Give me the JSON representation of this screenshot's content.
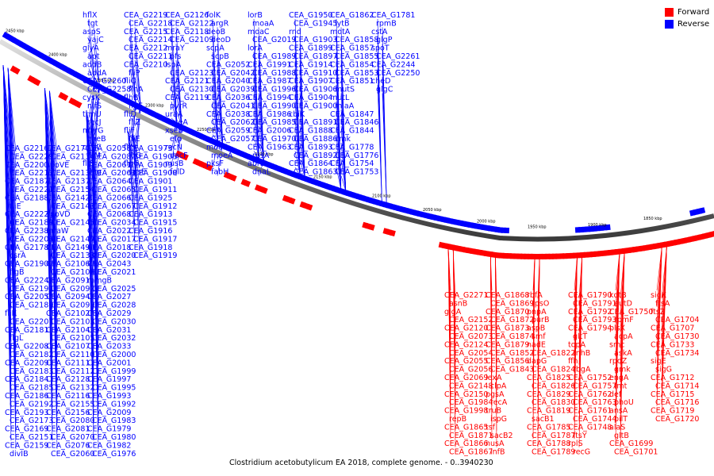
{
  "caption": "Clostridium acetobutylicum EA 2018, complete genome. - 0..3940230",
  "legend": [
    {
      "label": "Forward",
      "color": "#ff0000"
    },
    {
      "label": "Reverse",
      "color": "#0000ff"
    }
  ],
  "colors": {
    "forward": "#ff0000",
    "reverse": "#0000ff",
    "backbone": "#7f7f7f"
  },
  "scale_ticks": [
    "2450 kbp",
    "2400 kbp",
    "2350 kbp",
    "2300 kbp",
    "2250 kbp",
    "2200 kbp",
    "2150 kbp",
    "2100 kbp",
    "2050 kbp",
    "2000 kbp",
    "1950 kbp",
    "1900 kbp",
    "1850 kbp"
  ],
  "labels_reverse": [
    "hflX",
    "tgt",
    "aspS",
    "yajC",
    "glyA",
    "apt",
    "addB",
    "addA",
    "CEA_G2260",
    "CEA_G2258",
    "cysK",
    "nifS",
    "trmU",
    "recJ",
    "murG",
    "cheB",
    "cheC",
    "fliM",
    "fliS",
    "flag",
    "CEA_G2219",
    "CEA_G2218",
    "CEA_G2215",
    "CEA_G2214",
    "CEA_G2212",
    "CEA_G2211",
    "CEA_G2210",
    "fliP",
    "fliQ",
    "flhA",
    "flhB",
    "flgE",
    "fliD",
    "fliZ",
    "fliF",
    "fliE",
    "fliH",
    "fliG",
    "flgG",
    "spsE",
    "CEA_G2126",
    "CEA_G2122",
    "CEA_G2118",
    "CEA_G2109",
    "mraY",
    "pfs",
    "lspA",
    "CEA_G2123",
    "CEA_G2121",
    "CEA_G2130",
    "CEA_G2119",
    "pyrR",
    "uraA",
    "xseA",
    "xseB",
    "efp",
    "recN",
    "dacF",
    "nusB",
    "folD",
    "folK",
    "argR",
    "deoB",
    "deoD",
    "scpA",
    "scpB",
    "CEA_G2052",
    "CEA_G2042",
    "CEA_G2040",
    "CEA_G2039",
    "CEA_G2036",
    "CEA_G2041",
    "CEA_G2038",
    "CEA_G2062",
    "CEA_G2059",
    "CEA_G2057",
    "moaB",
    "moeA",
    "pksF",
    "fabH",
    "lorB",
    "moaA",
    "moaC",
    "CEA_G2019",
    "lorA",
    "CEA_G1989",
    "CEA_G1991",
    "CEA_G1988",
    "CEA_G1987",
    "CEA_G1996",
    "CEA_G1994",
    "CEA_G1990",
    "CEA_G1986",
    "CEA_G1985",
    "CEA_G2006",
    "CEA_G1970",
    "CEA_G1963",
    "rpsA",
    "abrB",
    "dnaL",
    "CEA_G1950",
    "CEA_G1945",
    "rnd",
    "CEA_G1903",
    "CEA_G1899",
    "CEA_G1897",
    "CEA_G1914",
    "CEA_G1910",
    "CEA_G1907",
    "CEA_G1906",
    "CEA_G1904",
    "CEA_G1900",
    "cbiK",
    "CEA_G1891",
    "CEA_G1888",
    "CEA_G1886",
    "CEA_G1893",
    "CEA_G1892",
    "CEA_G1864",
    "CEA_G1863",
    "CEA_G1862",
    "lytB",
    "motA",
    "CEA_G1858",
    "CEA_G1857",
    "CEA_G1855",
    "CEA_G1854",
    "CEA_G1853",
    "CEA_G1851",
    "mutS",
    "mutL",
    "miaA",
    "CEA_G1847",
    "CEA_G1846",
    "CEA_G1844",
    "cmk",
    "CEA_G1778",
    "CEA_G1776",
    "CEA_G1754",
    "CEA_G1753",
    "CEA_G1781",
    "rpmB",
    "cstA",
    "glgP",
    "spoT",
    "CEA_G2261",
    "CEA_G2244",
    "CEA_G2250",
    "cheD",
    "glgC",
    "CEA_G2216",
    "CEA_G2229",
    "CEA_G2200",
    "CEA_G2213",
    "CEA_G2187",
    "CEA_G2221",
    "CEA_G2188",
    "fliE",
    "CEA_G2222",
    "CEA_G2189",
    "CEA_G2238",
    "CEA_G2206",
    "CEA_G2178",
    "csrA",
    "CEA_G2190",
    "flgB",
    "CEA_G2224",
    "CEA_G2191",
    "CEA_G2205",
    "CEA_G2180",
    "fliK",
    "CEA_G2207",
    "CEA_G2181",
    "flgL",
    "CEA_G2208",
    "CEA_G2182",
    "CEA_G2209",
    "CEA_G2183",
    "CEA_G2184",
    "CEA_G2185",
    "CEA_G2186",
    "CEA_G2192",
    "CEA_G2193",
    "CEA_G2173",
    "CEA_G2169",
    "CEA_G2151",
    "CEA_G2159",
    "divIB",
    "CEA_G2170",
    "CEA_G2134",
    "spoVE",
    "CEA_G2135",
    "CEA_G2137",
    "CEA_G2154",
    "CEA_G2142",
    "CEA_G2143",
    "spoVD",
    "CEA_G2145",
    "mraW",
    "CEA_G2147",
    "CEA_G2149",
    "CEA_G2133",
    "CEA_G2106",
    "CEA_G2100",
    "CEA_G2091",
    "CEA_G2092",
    "CEA_G2094",
    "CEA_G2099",
    "CEA_G2102",
    "CEA_G2103",
    "CEA_G2104",
    "CEA_G2105",
    "CEA_G2107",
    "CEA_G2110",
    "CEA_G2111",
    "CEA_G2112",
    "CEA_G2128",
    "CEA_G2132",
    "CEA_G2116",
    "CEA_G2155",
    "CEA_G2156",
    "CEA_G2080",
    "CEA_G2081",
    "CEA_G2070",
    "CEA_G2076",
    "CEA_G2060",
    "CEA_G2058",
    "CEA_G2082",
    "CEA_G2061",
    "CEA_G2063",
    "CEA_G2064",
    "CEA_G2065",
    "CEA_G2066",
    "CEA_G2067",
    "CEA_G2068",
    "CEA_G2034",
    "CEA_G2022",
    "CEA_G2017",
    "CEA_G2018",
    "CEA_G2020",
    "CEA_G2043",
    "CEA_G2021",
    "mmgB",
    "CEA_G2025",
    "CEA_G2027",
    "CEA_G2028",
    "CEA_G2029",
    "CEA_G2030",
    "CEA_G2031",
    "CEA_G2032",
    "CEA_G2033",
    "CEA_G2000",
    "CEA_G2001",
    "CEA_G1999",
    "CEA_G1997",
    "CEA_G1995",
    "CEA_G1993",
    "CEA_G1992",
    "CEA_G2009",
    "CEA_G1983",
    "CEA_G1979",
    "CEA_G1980",
    "CEA_G1982",
    "CEA_G1976",
    "CEA_G1973",
    "CEA_G1905",
    "CEA_G1909",
    "CEA_G1908",
    "CEA_G1901",
    "CEA_G1911",
    "CEA_G1925",
    "CEA_G1912",
    "CEA_G1913",
    "CEA_G1915",
    "CEA_G1916",
    "CEA_G1917",
    "CEA_G1918",
    "CEA_G1919"
  ],
  "labels_forward": [
    "CEA_G2271",
    "asnB",
    "glgA",
    "CEA_G2152",
    "CEA_G2120",
    "CEA_G2073",
    "CEA_G2124",
    "CEA_G2054",
    "CEA_G2055",
    "CEA_G2056",
    "CEA_G2069",
    "CEA_G2148",
    "CEA_G2150",
    "CEA_G1984",
    "CEA_G1998",
    "repB",
    "CEA_G1865",
    "CEA_G1871",
    "CEA_G1866",
    "CEA_G1867",
    "CEA_G1868",
    "CEA_G1869",
    "CEA_G1870",
    "CEA_G1872",
    "CEA_G1873",
    "CEA_G1874",
    "CEA_G1879",
    "CEA_G1852",
    "CEA_G1856",
    "CEA_G1843",
    "lexA",
    "clpA",
    "pgsA",
    "recA",
    "truB",
    "ispG",
    "tsf",
    "sacB2",
    "nusA",
    "infB",
    "rbfA",
    "rpsO",
    "pnpA",
    "purB",
    "aspB",
    "smf",
    "nadE",
    "CEA_G1822",
    "dapG",
    "CEA_G1824",
    "CEA_G1825",
    "CEA_G1826",
    "CEA_G1829",
    "CEA_G1830",
    "CEA_G1819",
    "sacB1",
    "CEA_G1785",
    "CEA_G1787",
    "CEA_G1788",
    "CEA_G1789",
    "CEA_G1790",
    "CEA_G1791",
    "CEA_G1792",
    "CEA_G1793",
    "CEA_G1794",
    "gltT",
    "topA",
    "rnhB",
    "ffh",
    "rbgA",
    "CEA_G1752",
    "CEA_G1757",
    "CEA_G1762",
    "CEA_G1763",
    "CEA_G1761",
    "CEA_G1744",
    "CEA_G1748",
    "ftsY",
    "rplS",
    "recG",
    "kdtB",
    "eutD",
    "CEA_G1750",
    "rpmF",
    "plsX",
    "acpA",
    "smc",
    "askA",
    "rpoZ",
    "gmk",
    "engA",
    "fmt",
    "def",
    "phoU",
    "ansA",
    "pilT",
    "alaS",
    "gltB",
    "CEA_G1699",
    "CEA_G1701",
    "sigK",
    "ftsA",
    "ftsZ",
    "CEA_G1704",
    "CEA_G1707",
    "CEA_G1730",
    "CEA_G1733",
    "CEA_G1734",
    "sigE",
    "sigG",
    "CEA_G1712",
    "CEA_G1714",
    "CEA_G1715",
    "CEA_G1716",
    "CEA_G1719",
    "CEA_G1720"
  ]
}
